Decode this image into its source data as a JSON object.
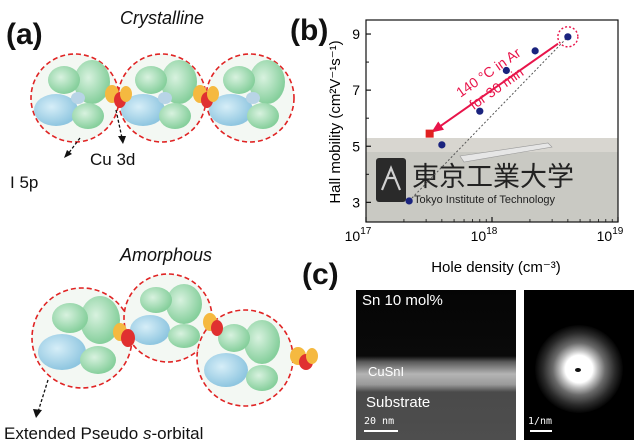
{
  "panel_a": {
    "letter": "(a)",
    "crystalline_title": "Crystalline",
    "amorphous_title": "Amorphous",
    "label_i5p": "I 5p",
    "label_cu3d": "Cu 3d",
    "label_extended_prefix": "Extended Pseudo ",
    "label_extended_italic": "s",
    "label_extended_suffix": "-orbital"
  },
  "panel_b": {
    "letter": "(b)",
    "annotation_line1": "140 °C in Ar",
    "annotation_line2": "for 30 min",
    "logo_kanji": "東京工業大学",
    "logo_english": "Tokyo Institute of Technology",
    "colors": {
      "points": "#1a237e",
      "annotated": "#e8144a",
      "heated_point": "#e02020"
    }
  },
  "panel_c": {
    "letter": "(c)",
    "composition": "Sn 10 mol%",
    "layer_label": "CuSnI",
    "substrate_label": "Substrate",
    "scale_real": "20 nm",
    "scale_diffraction": "1/nm"
  },
  "chart_data": {
    "type": "scatter",
    "xscale": "log",
    "xlim": [
      1e+17,
      1e+19
    ],
    "ylim": [
      2.3,
      9.5
    ],
    "xlabel": "Hole density (cm⁻³)",
    "ylabel": "Hall mobility (cm²V⁻¹s⁻¹)",
    "xticks": [
      {
        "value": 1e+17,
        "base": "10",
        "exp": "17"
      },
      {
        "value": 1e+18,
        "base": "10",
        "exp": "18"
      },
      {
        "value": 1e+19,
        "base": "10",
        "exp": "19"
      }
    ],
    "yticks": [
      3,
      5,
      7,
      9
    ],
    "series": [
      {
        "x": [
          2.2e+17,
          4e+17,
          8e+17,
          1.3e+18,
          2.2e+18,
          4e+18
        ],
        "y": [
          3.05,
          5.05,
          6.25,
          7.7,
          8.4,
          8.9
        ]
      }
    ],
    "heated_point": {
      "x": 3.2e+17,
      "y": 5.45
    }
  }
}
